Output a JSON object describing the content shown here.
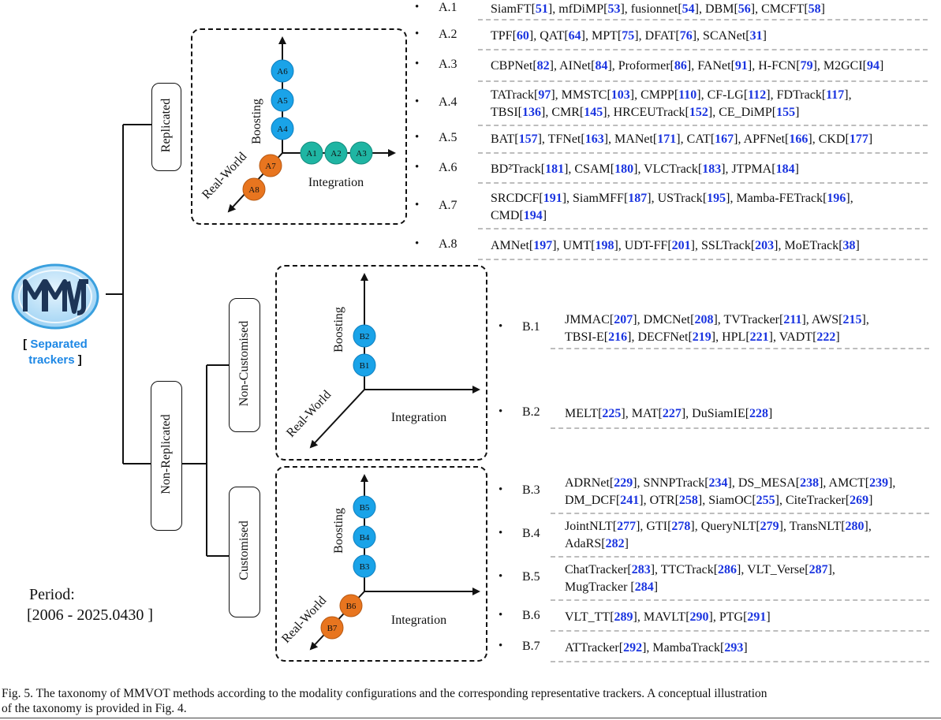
{
  "logo": {
    "mark": "MMVOT",
    "label_open": "[",
    "label_blue": "Separated trackers",
    "label_close": "]"
  },
  "categories": {
    "replicated": "Replicated",
    "non_replicated": "Non-Replicated",
    "non_customised": "Non-Customised",
    "customised": "Customised"
  },
  "axes": {
    "boosting": "Boosting",
    "integration": "Integration",
    "real_world": "Real-World"
  },
  "nodes_a": [
    "A1",
    "A2",
    "A3",
    "A4",
    "A5",
    "A6",
    "A7",
    "A8"
  ],
  "nodes_b1": [
    "B1",
    "B2"
  ],
  "nodes_b2": [
    "B3",
    "B4",
    "B5",
    "B6",
    "B7"
  ],
  "colors": {
    "boosting_node": "#1aa3e8",
    "integration_node": "#1fb5a3",
    "real_world_node": "#e8751f",
    "citation": "#1a34e0"
  },
  "period": {
    "label": "Period:",
    "range": "[2006 - 2025.0430 ]"
  },
  "rows": [
    {
      "id": "A.1",
      "lines": [
        "SiamFT[51], mfDiMP[53], fusionnet[54], DBM[56], CMCFT[58]"
      ]
    },
    {
      "id": "A.2",
      "lines": [
        "TPF[60], QAT[64], MPT[75], DFAT[76], SCANet[31]"
      ]
    },
    {
      "id": "A.3",
      "lines": [
        "CBPNet[82], AINet[84], Proformer[86], FANet[91], H-FCN[79], M2GCI[94]"
      ]
    },
    {
      "id": "A.4",
      "lines": [
        "TATrack[97], MMSTC[103], CMPP[110], CF-LG[112], FDTrack[117],",
        "TBSI[136], CMR[145], HRCEUTrack[152], CE_DiMP[155]"
      ]
    },
    {
      "id": "A.5",
      "lines": [
        "BAT[157], TFNet[163], MANet[171], CAT[167], APFNet[166], CKD[177]"
      ]
    },
    {
      "id": "A.6",
      "lines": [
        "BD²Track[181], CSAM[180], VLCTrack[183], JTPMA[184]"
      ]
    },
    {
      "id": "A.7",
      "lines": [
        "SRCDCF[191], SiamMFF[187], USTrack[195], Mamba-FETrack[196],",
        "CMD[194]"
      ]
    },
    {
      "id": "A.8",
      "lines": [
        "AMNet[197], UMT[198], UDT-FF[201], SSLTrack[203], MoETrack[38]"
      ]
    },
    {
      "id": "B.1",
      "lines": [
        "JMMAC[207], DMCNet[208], TVTracker[211], AWS[215],",
        "TBSI-E[216], DECFNet[219], HPL[221], VADT[222]"
      ]
    },
    {
      "id": "B.2",
      "lines": [
        "MELT[225], MAT[227], DuSiamIE[228]"
      ]
    },
    {
      "id": "B.3",
      "lines": [
        "ADRNet[229], SNNPTrack[234], DS_MESA[238], AMCT[239],",
        "DM_DCF[241], OTR[258],  SiamOC[255], CiteTracker[269]"
      ]
    },
    {
      "id": "B.4",
      "lines": [
        "JointNLT[277], GTI[278], QueryNLT[279], TransNLT[280],",
        "AdaRS[282]"
      ]
    },
    {
      "id": "B.5",
      "lines": [
        "ChatTracker[283], TTCTrack[286], VLT_Verse[287],",
        "MugTracker [284]"
      ]
    },
    {
      "id": "B.6",
      "lines": [
        "VLT_TT[289], MAVLT[290], PTG[291]"
      ]
    },
    {
      "id": "B.7",
      "lines": [
        "ATTracker[292], MambaTrack[293]"
      ]
    }
  ],
  "caption": {
    "line1": "Fig. 5.  The taxonomy of MMVOT methods according to the modality configurations and the corresponding representative trackers. A conceptual illustration",
    "line2": "of the taxonomy is provided in Fig. 4."
  }
}
